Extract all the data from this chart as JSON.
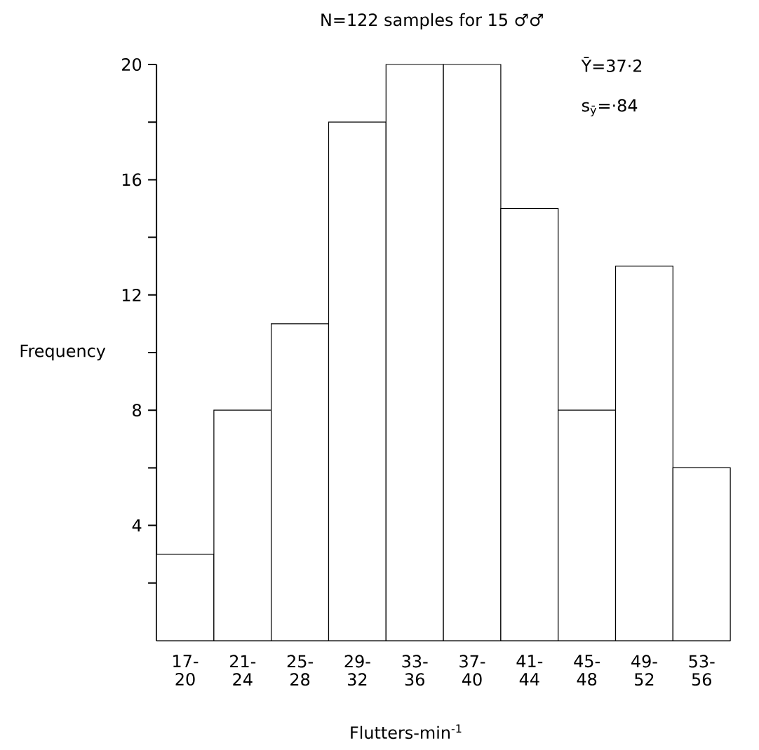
{
  "chart_data": {
    "type": "bar",
    "title": "N=122 samples for 15 ♂♂",
    "xlabel": "Flutters-min$^{-1}$",
    "ylabel": "Frequency",
    "categories": [
      "17- 20",
      "21- 24",
      "25- 28",
      "29- 32",
      "33- 36",
      "37- 40",
      "41- 44",
      "45- 48",
      "49- 52",
      "53- 56"
    ],
    "values": [
      3,
      8,
      11,
      18,
      20,
      20,
      15,
      8,
      13,
      6
    ],
    "color": "#ffffff",
    "ylim": [
      0,
      20
    ],
    "yticks": [
      {
        "value": 2,
        "label": null
      },
      4,
      {
        "value": 6,
        "label": null
      },
      8,
      {
        "value": 10,
        "label": null
      },
      12,
      {
        "value": 14,
        "label": null
      },
      16,
      {
        "value": 18,
        "label": null
      },
      20
    ],
    "annotations": [
      "Ȳ=37·2",
      "s$_{ȳ}$=·84"
    ]
  }
}
